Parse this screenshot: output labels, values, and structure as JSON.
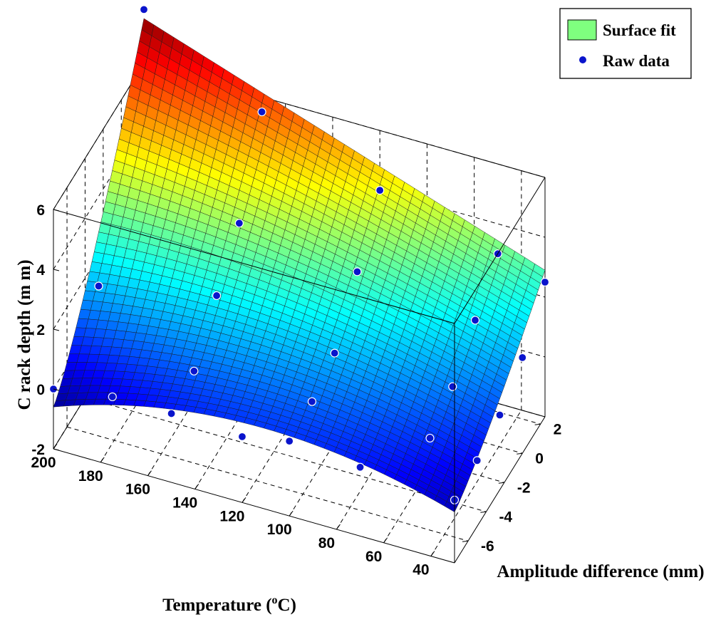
{
  "chart_data": {
    "type": "surface",
    "xlabel_main": "Temperature (",
    "xlabel_sup": "o",
    "xlabel_end": "C)",
    "ylabel": "Amplitude difference (mm)",
    "zlabel": "C rack  depth  (m m)",
    "xlim": [
      30,
      200
    ],
    "ylim": [
      -7.5,
      2.5
    ],
    "zlim": [
      -2,
      6
    ],
    "x_ticks": [
      "200",
      "180",
      "160",
      "140",
      "120",
      "100",
      "80",
      "60",
      "40"
    ],
    "y_ticks": [
      "-6",
      "-4",
      "-2",
      "0",
      "2"
    ],
    "z_ticks": [
      "-2",
      "0",
      "2",
      "4",
      "6"
    ],
    "grid": true,
    "legend": {
      "position": "top-right",
      "surface_label": "Surface fit",
      "points_label": "Raw data"
    },
    "colors": {
      "legend_surface": "#7fff7f",
      "points": "#0a14cc"
    },
    "raw_data": [
      [
        200,
        2.5,
        7.8
      ],
      [
        200,
        -2.5,
        1.0
      ],
      [
        200,
        -7.5,
        0.0
      ],
      [
        150,
        2.5,
        5.5
      ],
      [
        150,
        0,
        3.0
      ],
      [
        150,
        -2.5,
        1.8
      ],
      [
        150,
        -5,
        0.5
      ],
      [
        150,
        -7.5,
        0.3
      ],
      [
        100,
        2.5,
        4.0
      ],
      [
        100,
        0,
        2.5
      ],
      [
        100,
        -2.5,
        1.0
      ],
      [
        100,
        -5,
        0.6
      ],
      [
        100,
        -7.5,
        0.5
      ],
      [
        50,
        2.5,
        3.0
      ],
      [
        50,
        0,
        2.0
      ],
      [
        50,
        -2.5,
        1.0
      ],
      [
        50,
        -5,
        0.5
      ],
      [
        30,
        2.5,
        2.5
      ],
      [
        30,
        0,
        1.2
      ],
      [
        30,
        -2.5,
        0.5
      ],
      [
        30,
        -5,
        0.2
      ],
      [
        30,
        -7.5,
        0.1
      ],
      [
        70,
        -7.5,
        0.3
      ],
      [
        120,
        -7.5,
        0.2
      ],
      [
        175,
        -7.5,
        0.3
      ]
    ]
  }
}
